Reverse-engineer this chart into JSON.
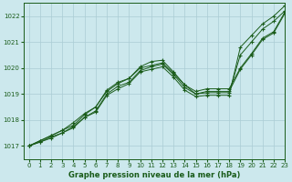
{
  "background_color": "#cce8ed",
  "grid_color": "#aaccd4",
  "line_color": "#1a5c1a",
  "title": "Graphe pression niveau de la mer (hPa)",
  "xlim": [
    -0.5,
    23
  ],
  "ylim": [
    1016.5,
    1022.5
  ],
  "yticks": [
    1017,
    1018,
    1019,
    1020,
    1021,
    1022
  ],
  "xticks": [
    0,
    1,
    2,
    3,
    4,
    5,
    6,
    7,
    8,
    9,
    10,
    11,
    12,
    13,
    14,
    15,
    16,
    17,
    18,
    19,
    20,
    21,
    22,
    23
  ],
  "series": [
    [
      1017.0,
      1017.2,
      1017.4,
      1017.6,
      1017.8,
      1018.2,
      1018.5,
      1019.1,
      1019.4,
      1019.6,
      1020.0,
      1020.1,
      1020.2,
      1019.8,
      1019.35,
      1019.0,
      1019.1,
      1019.1,
      1019.1,
      1019.95,
      1020.5,
      1021.1,
      1021.35,
      1022.1
    ],
    [
      1017.0,
      1017.15,
      1017.35,
      1017.5,
      1017.75,
      1018.1,
      1018.35,
      1019.0,
      1019.3,
      1019.45,
      1019.9,
      1020.05,
      1020.15,
      1019.75,
      1019.25,
      1019.0,
      1019.05,
      1019.05,
      1019.05,
      1020.5,
      1021.0,
      1021.5,
      1021.8,
      1022.2
    ],
    [
      1017.0,
      1017.15,
      1017.3,
      1017.5,
      1017.7,
      1018.1,
      1018.3,
      1018.95,
      1019.2,
      1019.4,
      1019.85,
      1019.95,
      1020.05,
      1019.65,
      1019.15,
      1018.9,
      1018.95,
      1018.95,
      1018.95,
      1020.8,
      1021.25,
      1021.7,
      1022.0,
      1022.4
    ],
    [
      1017.0,
      1017.2,
      1017.4,
      1017.6,
      1017.9,
      1018.25,
      1018.5,
      1019.15,
      1019.45,
      1019.6,
      1020.05,
      1020.25,
      1020.3,
      1019.85,
      1019.35,
      1019.1,
      1019.2,
      1019.2,
      1019.2,
      1020.0,
      1020.55,
      1021.15,
      1021.4,
      1022.15
    ]
  ],
  "title_fontsize": 6,
  "tick_fontsize": 5,
  "linewidth": 0.7,
  "markersize": 3
}
